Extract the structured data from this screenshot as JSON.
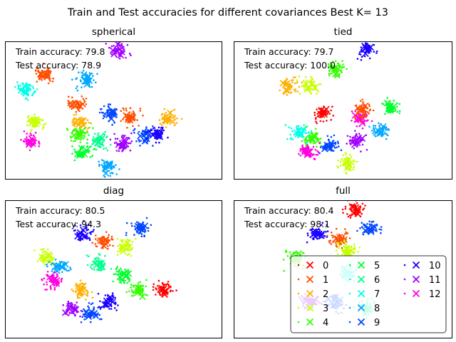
{
  "chart_data": {
    "type": "scatter",
    "title": "Train and Test accuracies for different covariances Best K= 13",
    "legend": {
      "placement": "lower-right of last panel",
      "columns": 3,
      "entries": [
        "0",
        "1",
        "2",
        "3",
        "4",
        "5",
        "6",
        "7",
        "8",
        "9",
        "10",
        "11",
        "12"
      ]
    },
    "class_colors": [
      "#ff0000",
      "#ff4e00",
      "#ffb000",
      "#c8ff00",
      "#33ff00",
      "#00ff2c",
      "#00ff8c",
      "#00ffe8",
      "#00a8ff",
      "#0046ff",
      "#1a00ff",
      "#a000ff",
      "#ff00e0"
    ],
    "axes_ticks": "none",
    "panels": [
      {
        "title": "spherical",
        "train_label": "Train accuracy: 79.8",
        "test_label": "Test accuracy: 78.9",
        "clusters": [
          [
            11,
            0.52,
            0.06
          ],
          [
            1,
            0.18,
            0.24
          ],
          [
            7,
            0.1,
            0.35
          ],
          [
            8,
            0.37,
            0.28
          ],
          [
            1,
            0.33,
            0.45
          ],
          [
            9,
            0.48,
            0.52
          ],
          [
            2,
            0.34,
            0.59
          ],
          [
            1,
            0.58,
            0.55
          ],
          [
            3,
            0.14,
            0.58
          ],
          [
            4,
            0.34,
            0.67
          ],
          [
            6,
            0.44,
            0.72
          ],
          [
            11,
            0.54,
            0.74
          ],
          [
            9,
            0.64,
            0.68
          ],
          [
            10,
            0.7,
            0.67
          ],
          [
            12,
            0.12,
            0.72
          ],
          [
            8,
            0.47,
            0.91
          ],
          [
            2,
            0.75,
            0.56
          ],
          [
            5,
            0.36,
            0.8
          ]
        ]
      },
      {
        "title": "tied",
        "train_label": "Train accuracy: 79.7",
        "test_label": "Test accuracy: 100.0",
        "clusters": [
          [
            10,
            0.6,
            0.06
          ],
          [
            3,
            0.35,
            0.32
          ],
          [
            4,
            0.47,
            0.2
          ],
          [
            0,
            0.41,
            0.52
          ],
          [
            4,
            0.36,
            0.7
          ],
          [
            9,
            0.44,
            0.76
          ],
          [
            11,
            0.56,
            0.72
          ],
          [
            12,
            0.58,
            0.56
          ],
          [
            8,
            0.67,
            0.64
          ],
          [
            1,
            0.59,
            0.5
          ],
          [
            5,
            0.72,
            0.48
          ],
          [
            7,
            0.3,
            0.66
          ],
          [
            3,
            0.52,
            0.88
          ],
          [
            12,
            0.34,
            0.8
          ],
          [
            2,
            0.25,
            0.33
          ]
        ]
      },
      {
        "title": "diag",
        "train_label": "Train accuracy: 80.5",
        "test_label": "Test accuracy: 94.3",
        "clusters": [
          [
            10,
            0.36,
            0.24
          ],
          [
            9,
            0.62,
            0.2
          ],
          [
            1,
            0.46,
            0.3
          ],
          [
            3,
            0.55,
            0.34
          ],
          [
            6,
            0.43,
            0.46
          ],
          [
            5,
            0.55,
            0.55
          ],
          [
            4,
            0.61,
            0.66
          ],
          [
            0,
            0.73,
            0.65
          ],
          [
            2,
            0.35,
            0.65
          ],
          [
            10,
            0.48,
            0.73
          ],
          [
            9,
            0.4,
            0.82
          ],
          [
            11,
            0.31,
            0.79
          ],
          [
            3,
            0.18,
            0.42
          ],
          [
            8,
            0.25,
            0.48
          ],
          [
            12,
            0.22,
            0.58
          ]
        ]
      },
      {
        "title": "full",
        "train_label": "Train accuracy: 80.4",
        "test_label": "Test accuracy: 98.1",
        "clusters": [
          [
            0,
            0.56,
            0.07
          ],
          [
            10,
            0.38,
            0.24
          ],
          [
            9,
            0.62,
            0.2
          ],
          [
            1,
            0.48,
            0.28
          ],
          [
            3,
            0.52,
            0.36
          ],
          [
            4,
            0.28,
            0.42
          ],
          [
            7,
            0.52,
            0.53
          ],
          [
            11,
            0.35,
            0.73
          ],
          [
            9,
            0.46,
            0.74
          ],
          [
            6,
            0.6,
            0.78
          ]
        ]
      }
    ]
  }
}
